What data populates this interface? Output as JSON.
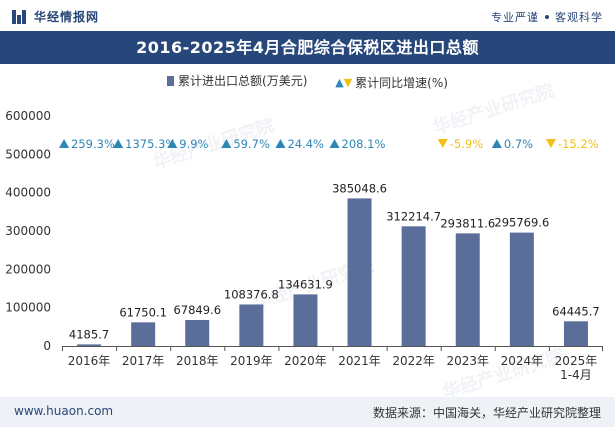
{
  "header": {
    "brand": "华经情报网",
    "slogan_left": "专业严谨",
    "slogan_right": "客观科学"
  },
  "title": "2016-2025年4月合肥综合保税区进出口总额",
  "legend": {
    "bar": "累计进出口总额(万美元)",
    "growth": "累计同比增速(%)"
  },
  "footer": {
    "website": "www.huaon.com",
    "source": "数据来源：中国海关，华经产业研究院整理"
  },
  "watermark": "华经产业研究院",
  "colors": {
    "brand": "#27477a",
    "bar": "#5b6e9a",
    "up": "#2e86b6",
    "down": "#f2c014"
  },
  "chart_data": {
    "type": "bar",
    "categories": [
      "2016年",
      "2017年",
      "2018年",
      "2019年",
      "2020年",
      "2021年",
      "2022年",
      "2023年",
      "2024年",
      "2025年\n1-4月"
    ],
    "series": [
      {
        "name": "累计进出口总额(万美元)",
        "values": [
          4185.7,
          61750.1,
          67849.6,
          108376.8,
          134631.9,
          385048.6,
          312214.7,
          293811.6,
          295769.6,
          64445.7
        ]
      },
      {
        "name": "累计同比增速(%)",
        "values": [
          259.3,
          1375.3,
          9.9,
          59.7,
          24.4,
          208.1,
          null,
          -5.9,
          0.7,
          -15.2
        ]
      }
    ],
    "value_labels": [
      "4185.7",
      "61750.1",
      "67849.6",
      "108376.8",
      "134631.9",
      "385048.6",
      "312214.7",
      "293811.6",
      "295769.6",
      "64445.7"
    ],
    "growth_labels": [
      "259.3%",
      "1375.3%",
      "9.9%",
      "59.7%",
      "24.4%",
      "208.1%",
      "",
      "-5.9%",
      "0.7%",
      "-15.2%"
    ],
    "ylim": [
      0,
      600000
    ],
    "yticks": [
      "0",
      "100000",
      "200000",
      "300000",
      "400000",
      "500000",
      "600000"
    ],
    "grid": false
  }
}
